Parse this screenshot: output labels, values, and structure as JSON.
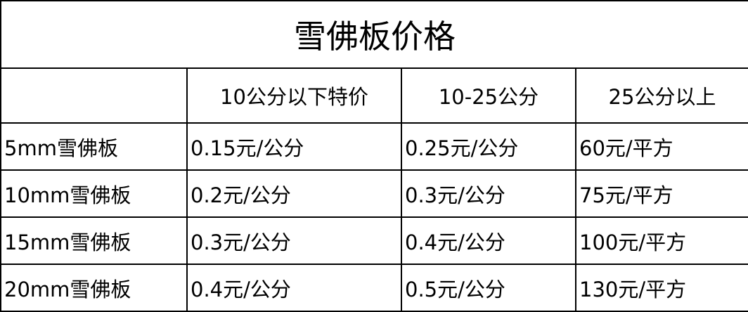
{
  "title": "雪佛板价格",
  "columns": [
    "",
    "10公分以下特价",
    "10-25公分",
    "25公分以上"
  ],
  "rows": [
    {
      "name": "5mm雪佛板",
      "values": [
        "0.15元/公分",
        "0.25元/公分",
        "60元/平方"
      ]
    },
    {
      "name": "10mm雪佛板",
      "values": [
        "0.2元/公分",
        "0.3元/公分",
        "75元/平方"
      ]
    },
    {
      "name": "15mm雪佛板",
      "values": [
        "0.3元/公分",
        "0.4元/公分",
        "100元/平方"
      ]
    },
    {
      "name": "20mm雪佛板",
      "values": [
        "0.4元/公分",
        "0.5元/公分",
        "130元/平方"
      ]
    }
  ]
}
